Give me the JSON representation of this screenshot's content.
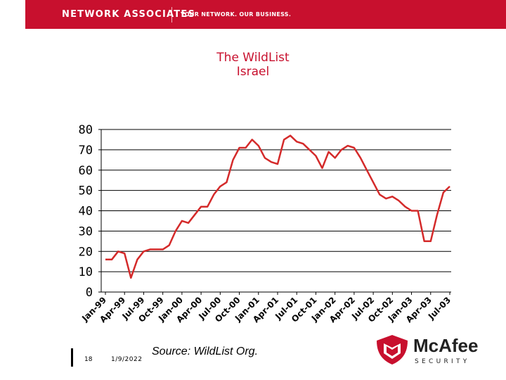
{
  "header": {
    "brand": "NETWORK ASSOCIATES",
    "tagline": "YOUR NETWORK. OUR BUSINESS.",
    "color": "#c8102e"
  },
  "footer": {
    "page_number": "18",
    "date": "1/9/2022",
    "source": "Source: WildList Org."
  },
  "logo": {
    "wordmark": "McAfee",
    "subword": "SECURITY",
    "icon": "mcafee-shield-icon"
  },
  "chart_data": {
    "type": "line",
    "title": "The WildList",
    "subtitle": "Israel",
    "xlabel": "",
    "ylabel": "",
    "ylim": [
      0,
      80
    ],
    "yticks": [
      0,
      10,
      20,
      30,
      40,
      50,
      60,
      70,
      80
    ],
    "grid": true,
    "legend": "none",
    "line_color": "#d42a2a",
    "x_tick_labels": [
      "Jan-99",
      "Apr-99",
      "Jul-99",
      "Oct-99",
      "Jan-00",
      "Apr-00",
      "Jul-00",
      "Oct-00",
      "Jan-01",
      "Apr-01",
      "Jul-01",
      "Oct-01",
      "Jan-02",
      "Apr-02",
      "Jul-02",
      "Oct-02",
      "Jan-03",
      "Apr-03",
      "Jul-03"
    ],
    "series": [
      {
        "name": "",
        "values": [
          16,
          16,
          20,
          19,
          7,
          16,
          20,
          21,
          21,
          21,
          23,
          30,
          35,
          34,
          38,
          42,
          42,
          48,
          52,
          54,
          65,
          71,
          71,
          75,
          72,
          66,
          64,
          63,
          75,
          77,
          74,
          73,
          70,
          67,
          61,
          69,
          66,
          70,
          72,
          71,
          66,
          60,
          54,
          48,
          46,
          47,
          45,
          42,
          40,
          40,
          25,
          25,
          38,
          49,
          52
        ]
      }
    ]
  }
}
